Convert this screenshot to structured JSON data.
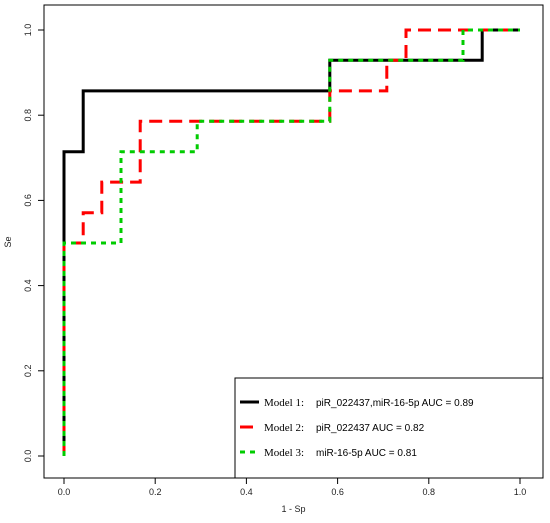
{
  "chart_data": {
    "type": "line",
    "xlabel": "1 - Sp",
    "ylabel": "Se",
    "xlim": [
      0,
      1
    ],
    "ylim": [
      0,
      1
    ],
    "xticks": [
      "0.0",
      "0.2",
      "0.4",
      "0.6",
      "0.8",
      "1.0"
    ],
    "yticks": [
      "0.0",
      "0.2",
      "0.4",
      "0.6",
      "0.8",
      "1.0"
    ],
    "grid": false,
    "legend_position": "bottom-right",
    "series": [
      {
        "model": "Model 1:",
        "name": "piR_022437,miR-16-5p AUC =  0.89",
        "color": "#000000",
        "dash": "solid",
        "x": [
          0,
          0,
          0.042,
          0.042,
          0.583,
          0.583,
          0.917,
          0.917,
          1.0
        ],
        "y": [
          0,
          0.714,
          0.714,
          0.857,
          0.857,
          0.929,
          0.929,
          1.0,
          1.0
        ]
      },
      {
        "model": "Model 2:",
        "name": "piR_022437 AUC =  0.82",
        "color": "#ff0000",
        "dash": "dashed",
        "x": [
          0,
          0,
          0.042,
          0.042,
          0.083,
          0.083,
          0.125,
          0.125,
          0.167,
          0.167,
          0.583,
          0.583,
          0.708,
          0.708,
          0.75,
          0.75,
          1.0
        ],
        "y": [
          0,
          0.5,
          0.5,
          0.571,
          0.571,
          0.643,
          0.643,
          0.643,
          0.643,
          0.786,
          0.786,
          0.857,
          0.857,
          0.929,
          0.929,
          1.0,
          1.0
        ]
      },
      {
        "model": "Model 3:",
        "name": "miR-16-5p AUC =  0.81",
        "color": "#00cc00",
        "dash": "dotted",
        "x": [
          0,
          0,
          0.125,
          0.125,
          0.292,
          0.292,
          0.583,
          0.583,
          0.875,
          0.875,
          1.0
        ],
        "y": [
          0,
          0.5,
          0.5,
          0.714,
          0.714,
          0.786,
          0.786,
          0.929,
          0.929,
          1.0,
          1.0
        ]
      }
    ]
  }
}
